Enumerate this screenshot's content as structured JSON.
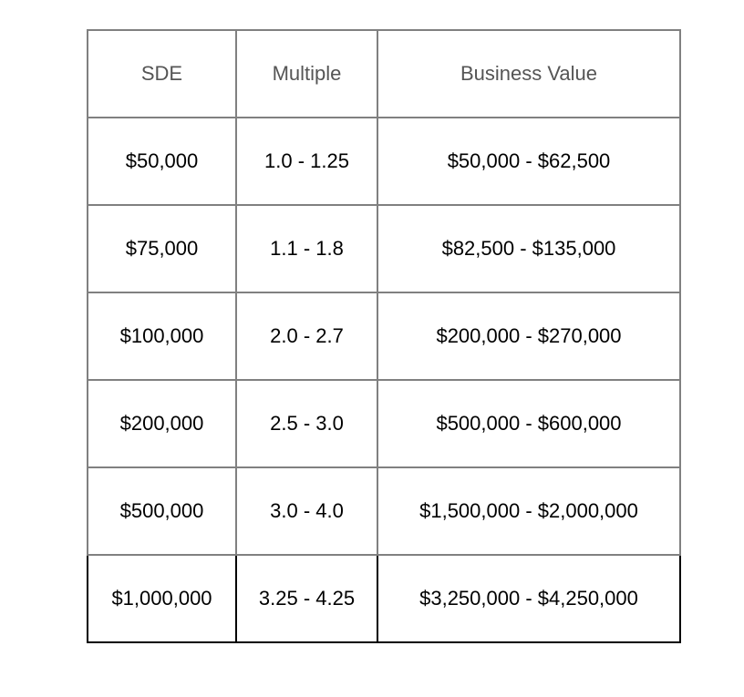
{
  "table": {
    "headers": [
      "SDE",
      "Multiple",
      "Business Value"
    ],
    "rows": [
      [
        "$50,000",
        "1.0 - 1.25",
        "$50,000 - $62,500"
      ],
      [
        "$75,000",
        "1.1 - 1.8",
        "$82,500 - $135,000"
      ],
      [
        "$100,000",
        "2.0 - 2.7",
        "$200,000 - $270,000"
      ],
      [
        "$200,000",
        "2.5 - 3.0",
        "$500,000 - $600,000"
      ],
      [
        "$500,000",
        "3.0 - 4.0",
        "$1,500,000 - $2,000,000"
      ],
      [
        "$1,000,000",
        "3.25 - 4.25",
        "$3,250,000 - $4,250,000"
      ]
    ]
  },
  "colors": {
    "background": "#ffffff",
    "grid_border": "#808080",
    "highlight_border": "#000000",
    "header_text": "#555555",
    "body_text": "#000000"
  }
}
